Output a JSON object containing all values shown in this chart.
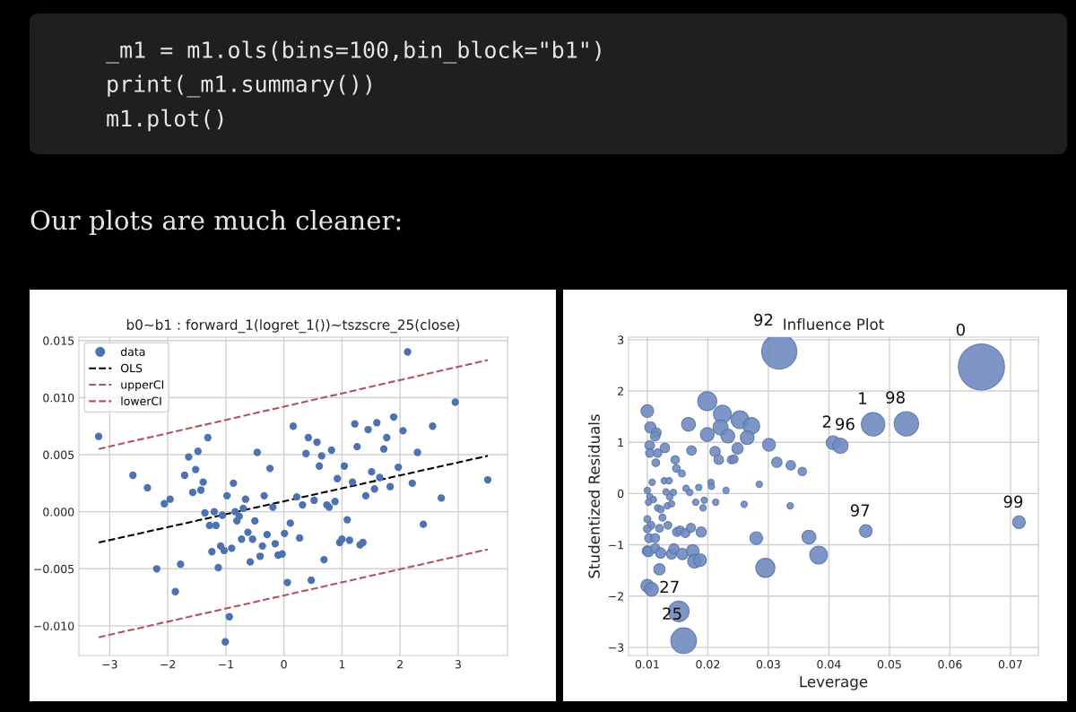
{
  "chart_data": [
    {
      "type": "other",
      "annotations": [
        "_m1 = m1.ols(bins=100,bin_block=\"b1\")",
        "print(_m1.summary())",
        "m1.plot()",
        "Our plots are much cleaner:"
      ]
    },
    {
      "type": "scatter",
      "title": "b0~b1 : forward_1(logret_1())~tszscre_25(close)",
      "xlim": [
        -3.53,
        3.85
      ],
      "ylim": [
        -0.0126,
        0.0153
      ],
      "xticks": [
        {
          "value": -3,
          "label": "−3"
        },
        {
          "value": -2,
          "label": "−2"
        },
        {
          "value": -1,
          "label": "−1"
        },
        0,
        1,
        2,
        3
      ],
      "yticks": [
        {
          "value": -0.01,
          "label": "−0.010"
        },
        {
          "value": -0.005,
          "label": "−0.005"
        },
        {
          "value": 0,
          "label": "0.000"
        },
        {
          "value": 0.005,
          "label": "0.005"
        },
        {
          "value": 0.01,
          "label": "0.010"
        },
        {
          "value": 0.015,
          "label": "0.015"
        }
      ],
      "grid": true,
      "legend": "top left",
      "series": [
        {
          "name": "data",
          "type": "scatter",
          "marker": "circle",
          "color": "#4c72b0",
          "x": [
            -3.19,
            -2.6,
            -2.35,
            -2.19,
            -2.06,
            -1.96,
            -1.87,
            -1.78,
            -1.71,
            -1.64,
            -1.57,
            -1.52,
            -1.48,
            -1.43,
            -1.39,
            -1.36,
            -1.31,
            -1.28,
            -1.24,
            -1.2,
            -1.17,
            -1.13,
            -1.09,
            -1.06,
            -1.03,
            -1.01,
            -0.98,
            -0.94,
            -0.9,
            -0.87,
            -0.84,
            -0.81,
            -0.77,
            -0.73,
            -0.7,
            -0.66,
            -0.62,
            -0.58,
            -0.54,
            -0.5,
            -0.46,
            -0.41,
            -0.37,
            -0.34,
            -0.29,
            -0.24,
            -0.19,
            -0.15,
            -0.1,
            -0.03,
            0.01,
            0.06,
            0.11,
            0.16,
            0.22,
            0.27,
            0.32,
            0.38,
            0.42,
            0.47,
            0.52,
            0.57,
            0.61,
            0.65,
            0.69,
            0.74,
            0.78,
            0.82,
            0.88,
            0.92,
            0.96,
            1.0,
            1.04,
            1.09,
            1.13,
            1.18,
            1.22,
            1.26,
            1.31,
            1.36,
            1.41,
            1.45,
            1.51,
            1.56,
            1.6,
            1.65,
            1.72,
            1.77,
            1.83,
            1.89,
            1.97,
            2.05,
            2.13,
            2.21,
            2.3,
            2.4,
            2.56,
            2.71,
            2.95,
            3.51
          ],
          "values": [
            0.0066,
            0.0032,
            0.0021,
            -0.005,
            0.0007,
            0.0011,
            -0.007,
            -0.0046,
            0.0032,
            0.0048,
            0.0017,
            0.0037,
            0.0053,
            0.0019,
            0.0026,
            -0.0001,
            0.0065,
            -0.0012,
            -0.0035,
            0.0,
            -0.0012,
            -0.0049,
            -0.003,
            -0.0003,
            -0.0034,
            -0.0114,
            0.0014,
            -0.0092,
            -0.0032,
            0.0025,
            0.0,
            -0.0008,
            -0.0004,
            -0.0024,
            0.0003,
            0.0011,
            -0.0018,
            -0.0044,
            -0.0024,
            -0.0008,
            0.0052,
            -0.0039,
            -0.003,
            0.0014,
            -0.002,
            0.0038,
            0.0004,
            -0.0028,
            -0.0038,
            -0.0037,
            -0.0019,
            -0.0062,
            -0.001,
            0.0075,
            0.0013,
            -0.0023,
            0.0006,
            0.0051,
            0.0065,
            -0.006,
            0.001,
            0.0061,
            0.004,
            0.0049,
            -0.0042,
            0.0006,
            0.0004,
            0.0054,
            0.0009,
            0.0029,
            -0.0027,
            -0.0024,
            0.004,
            -0.0007,
            -0.0025,
            0.0026,
            0.0077,
            0.0057,
            -0.0029,
            -0.0027,
            0.0014,
            0.0072,
            0.0035,
            0.002,
            0.0078,
            0.003,
            0.0055,
            0.0065,
            0.0022,
            0.0083,
            0.0039,
            0.0071,
            0.014,
            0.0025,
            0.0052,
            -0.0011,
            0.0075,
            0.0012,
            0.0096,
            0.0028
          ]
        },
        {
          "name": "OLS",
          "type": "line",
          "line_style": "dashed",
          "color": "#000000",
          "x": [
            -3.19,
            3.51
          ],
          "values": [
            -0.0027,
            0.0049
          ]
        },
        {
          "name": "upperCI",
          "type": "line",
          "line_style": "dashed",
          "color": "#b0545c",
          "x": [
            -3.19,
            3.51
          ],
          "values": [
            0.0055,
            0.0133
          ]
        },
        {
          "name": "lowerCI",
          "type": "line",
          "line_style": "dashed",
          "color": "#b0545c",
          "x": [
            -3.19,
            3.51
          ],
          "values": [
            -0.011,
            -0.0033
          ]
        }
      ]
    },
    {
      "type": "bubble",
      "title": "Influence Plot",
      "xlabel": "Leverage",
      "ylabel": "Studentized Residuals",
      "xlim": [
        0.0069,
        0.0746
      ],
      "ylim": [
        -3.16,
        3.05
      ],
      "xticks": [
        0.01,
        0.02,
        0.03,
        0.04,
        0.05,
        0.06,
        0.07
      ],
      "yticks": [
        {
          "value": -3,
          "label": "−3"
        },
        {
          "value": -2,
          "label": "−2"
        },
        {
          "value": -1,
          "label": "−1"
        },
        0,
        1,
        2,
        3
      ],
      "grid": true,
      "series": [
        {
          "color": "#6f8bc0",
          "x": [
            0.0652,
            0.0318,
            0.0473,
            0.0528,
            0.0407,
            0.0419,
            0.0461,
            0.0714,
            0.0152,
            0.016,
            0.01,
            0.0107,
            0.012,
            0.01,
            0.0105,
            0.0115,
            0.0113,
            0.0104,
            0.0104,
            0.0117,
            0.0129,
            0.0114,
            0.0168,
            0.0173,
            0.0199,
            0.0199,
            0.0224,
            0.0221,
            0.0233,
            0.0253,
            0.0272,
            0.0265,
            0.0249,
            0.0212,
            0.0218,
            0.0239,
            0.0243,
            0.0301,
            0.0314,
            0.0337,
            0.0356,
            0.0146,
            0.0148,
            0.0157,
            0.0108,
            0.0128,
            0.0136,
            0.01,
            0.0104,
            0.0102,
            0.011,
            0.0131,
            0.0143,
            0.0137,
            0.0164,
            0.017,
            0.0185,
            0.0205,
            0.0206,
            0.023,
            0.0285,
            0.0194,
            0.018,
            0.0213,
            0.0192,
            0.026,
            0.0336,
            0.0117,
            0.0122,
            0.0133,
            0.014,
            0.0125,
            0.01,
            0.0106,
            0.012,
            0.0134,
            0.01,
            0.0103,
            0.0113,
            0.0149,
            0.0154,
            0.0163,
            0.0172,
            0.0189,
            0.01,
            0.0102,
            0.0113,
            0.0122,
            0.014,
            0.0144,
            0.0158,
            0.0175,
            0.0178,
            0.0187,
            0.028,
            0.0295,
            0.0367,
            0.0383
          ],
          "values": [
            2.47,
            2.77,
            1.35,
            1.36,
            0.99,
            0.93,
            -0.73,
            -0.56,
            -2.3,
            -2.87,
            -1.8,
            -1.87,
            -1.48,
            1.61,
            1.29,
            1.19,
            1.12,
            0.94,
            0.79,
            0.79,
            0.89,
            0.6,
            1.35,
            0.84,
            1.8,
            1.15,
            1.55,
            1.29,
            1.12,
            1.44,
            1.32,
            1.09,
            0.88,
            0.82,
            0.66,
            0.66,
            0.67,
            0.95,
            0.61,
            0.55,
            0.43,
            0.66,
            0.49,
            0.39,
            0.22,
            0.25,
            0.25,
            0.06,
            -0.06,
            -0.17,
            -0.12,
            0.03,
            0.02,
            -0.07,
            0.1,
            0.02,
            0.12,
            0.22,
            0.14,
            0.06,
            0.18,
            -0.13,
            -0.17,
            -0.17,
            -0.28,
            -0.21,
            -0.24,
            -0.28,
            -0.31,
            -0.24,
            -0.2,
            -0.47,
            -0.5,
            -0.62,
            -0.68,
            -0.62,
            -0.69,
            -0.87,
            -0.87,
            -0.75,
            -0.72,
            -0.77,
            -0.67,
            -0.75,
            -1.12,
            -1.13,
            -1.07,
            -1.16,
            -1.18,
            -1.08,
            -1.18,
            -1.12,
            -1.32,
            -1.3,
            -0.87,
            -1.45,
            -0.85,
            -1.2
          ],
          "sizes": [
            1,
            0.58,
            0.26,
            0.28,
            0.09,
            0.11,
            0.077,
            0.077,
            0.2,
            0.31,
            0.077,
            0.09,
            0.06,
            0.077,
            0.06,
            0.043,
            0.043,
            0.043,
            0.033,
            0.033,
            0.043,
            0.028,
            0.09,
            0.043,
            0.17,
            0.09,
            0.15,
            0.11,
            0.09,
            0.15,
            0.13,
            0.09,
            0.06,
            0.05,
            0.043,
            0.033,
            0.033,
            0.077,
            0.05,
            0.043,
            0.033,
            0.033,
            0.028,
            0.023,
            0.019,
            0.019,
            0.019,
            0.019,
            0.019,
            0.019,
            0.019,
            0.019,
            0.019,
            0.019,
            0.019,
            0.019,
            0.019,
            0.019,
            0.019,
            0.019,
            0.019,
            0.019,
            0.019,
            0.019,
            0.019,
            0.019,
            0.019,
            0.019,
            0.023,
            0.019,
            0.019,
            0.023,
            0.023,
            0.028,
            0.028,
            0.028,
            0.028,
            0.038,
            0.038,
            0.038,
            0.038,
            0.038,
            0.038,
            0.05,
            0.05,
            0.05,
            0.043,
            0.05,
            0.05,
            0.05,
            0.06,
            0.077,
            0.09,
            0.077,
            0.077,
            0.17,
            0.09,
            0.15
          ]
        }
      ],
      "annotations": [
        {
          "text": "0",
          "x": 0.0652,
          "y": 2.47
        },
        {
          "text": "92",
          "x": 0.0318,
          "y": 2.77
        },
        {
          "text": "1",
          "x": 0.0473,
          "y": 1.35
        },
        {
          "text": "98",
          "x": 0.0528,
          "y": 1.36
        },
        {
          "text": "2",
          "x": 0.0407,
          "y": 0.99
        },
        {
          "text": "96",
          "x": 0.0419,
          "y": 0.93
        },
        {
          "text": "97",
          "x": 0.0461,
          "y": -0.73
        },
        {
          "text": "99",
          "x": 0.0714,
          "y": -0.56
        },
        {
          "text": "27",
          "x": 0.0152,
          "y": -2.3
        },
        {
          "text": "25",
          "x": 0.016,
          "y": -2.87
        }
      ]
    }
  ]
}
